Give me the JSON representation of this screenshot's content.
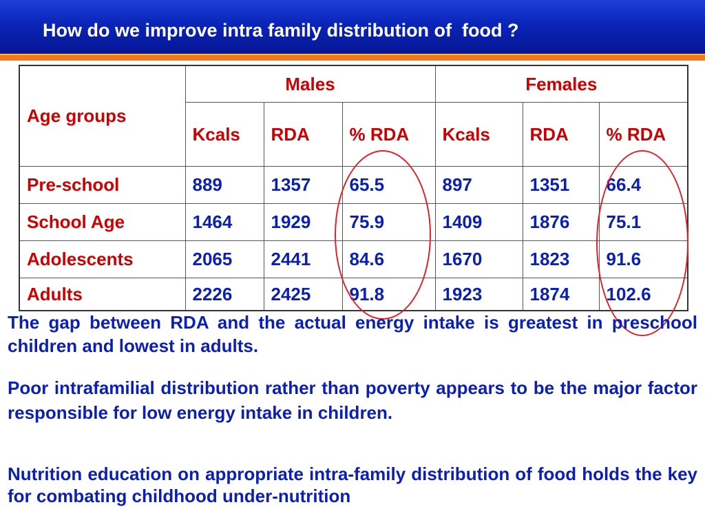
{
  "slide": {
    "title": "How do we improve intra family distribution of  food ?"
  },
  "table": {
    "header": {
      "age_groups": "Age groups",
      "males": "Males",
      "females": "Females"
    },
    "subheader": {
      "males": [
        "Kcals",
        "RDA",
        "% RDA"
      ],
      "females": [
        "Kcals",
        "RDA",
        "% RDA"
      ]
    },
    "rows": [
      {
        "label": "Pre-school",
        "m_kcals": "889",
        "m_rda": "1357",
        "m_pct": "65.5",
        "f_kcals": "897",
        "f_rda": "1351",
        "f_pct": "66.4"
      },
      {
        "label": "School Age",
        "m_kcals": "1464",
        "m_rda": "1929",
        "m_pct": "75.9",
        "f_kcals": "1409",
        "f_rda": "1876",
        "f_pct": "75.1"
      },
      {
        "label": "Adolescents",
        "m_kcals": "2065",
        "m_rda": "2441",
        "m_pct": "84.6",
        "f_kcals": "1670",
        "f_rda": "1823",
        "f_pct": "91.6"
      },
      {
        "label": "Adults",
        "m_kcals": "2226",
        "m_rda": "2425",
        "m_pct": "91.8",
        "f_kcals": "1923",
        "f_rda": "1874",
        "f_pct": "102.6"
      }
    ]
  },
  "paragraphs": [
    "The gap between RDA and the actual energy intake is greatest in preschool children and lowest in adults.",
    "Poor intrafamilial distribution rather than poverty  appears to be the major factor responsible for low energy intake in children.",
    "Nutrition education on  appropriate  intra-family distribution of food holds the key for combating childhood under-nutrition"
  ],
  "colors": {
    "title_bar": "#0a24b8",
    "title_stripe": "#f07a1a",
    "label_text": "#cc0000",
    "value_text": "#0b1fb3",
    "highlight_circle": "#e0202a"
  }
}
